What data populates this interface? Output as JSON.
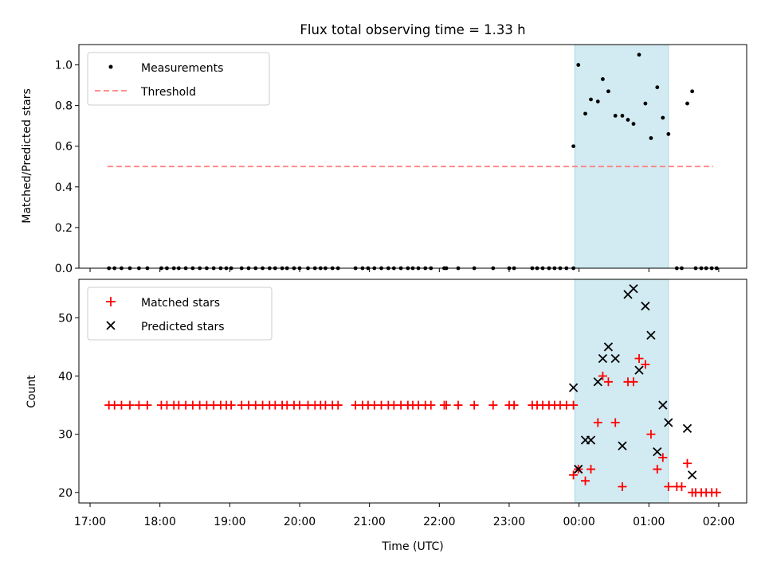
{
  "title": "Flux total observing time = 1.33 h",
  "colors": {
    "shade": "#add8e6",
    "measurement": "#000000",
    "threshold": "#ff7f7f",
    "matched": "#ff0000",
    "predicted": "#000000"
  },
  "chart_data": [
    {
      "type": "scatter",
      "panel": "top",
      "title": "Flux total observing time = 1.33 h",
      "xlabel": "",
      "ylabel": "Matched/Predicted stars",
      "xlim": [
        16.84,
        26.4
      ],
      "ylim": [
        0,
        1.1
      ],
      "yticks": [
        "0.0",
        "0.2",
        "0.4",
        "0.6",
        "0.8",
        "1.0"
      ],
      "ytick_values": [
        0,
        0.2,
        0.4,
        0.6,
        0.8,
        1.0
      ],
      "observing_window": [
        23.94,
        25.28
      ],
      "legend": [
        "Measurements",
        "Threshold"
      ],
      "threshold": {
        "y": 0.5,
        "x_from": 17.25,
        "x_to": 25.92
      },
      "measurements": {
        "zero_times": [
          17.27,
          17.35,
          17.45,
          17.57,
          17.7,
          17.82,
          18.02,
          18.1,
          18.2,
          18.27,
          18.37,
          18.47,
          18.57,
          18.67,
          18.77,
          18.87,
          18.95,
          19.02,
          19.17,
          19.27,
          19.37,
          19.47,
          19.57,
          19.65,
          19.75,
          19.82,
          19.92,
          20.0,
          20.12,
          20.22,
          20.3,
          20.37,
          20.47,
          20.55,
          20.8,
          20.9,
          20.98,
          21.07,
          21.17,
          21.27,
          21.35,
          21.45,
          21.55,
          21.62,
          21.7,
          21.8,
          21.88,
          22.07,
          22.1,
          22.27,
          22.5,
          22.77,
          23.0,
          23.07,
          23.33,
          23.4,
          23.48,
          23.57,
          23.65,
          23.73,
          23.82,
          23.92,
          25.4,
          25.47,
          25.67,
          25.75,
          25.82,
          25.9,
          25.97
        ],
        "active_times": [
          23.92,
          23.99,
          24.09,
          24.17,
          24.27,
          24.34,
          24.42,
          24.52,
          24.62,
          24.7,
          24.78,
          24.86,
          24.95,
          25.03,
          25.12,
          25.2,
          25.28,
          25.55,
          25.62
        ],
        "active_values": [
          0.6,
          1.0,
          0.76,
          0.83,
          0.82,
          0.93,
          0.87,
          0.75,
          0.75,
          0.73,
          0.71,
          1.05,
          0.81,
          0.64,
          0.89,
          0.74,
          0.66,
          0.81,
          0.87
        ]
      }
    },
    {
      "type": "scatter",
      "panel": "bottom",
      "xlabel": "Time (UTC)",
      "ylabel": "Count",
      "xlim": [
        16.84,
        26.4
      ],
      "ylim": [
        18.2,
        56.6
      ],
      "yticks": [
        "20",
        "30",
        "40",
        "50"
      ],
      "ytick_values": [
        20,
        30,
        40,
        50
      ],
      "xticks": [
        "17:00",
        "18:00",
        "19:00",
        "20:00",
        "21:00",
        "22:00",
        "23:00",
        "00:00",
        "01:00",
        "02:00"
      ],
      "xtick_values": [
        17,
        18,
        19,
        20,
        21,
        22,
        23,
        24,
        25,
        26
      ],
      "observing_window": [
        23.94,
        25.28
      ],
      "legend": [
        "Matched stars",
        "Predicted stars"
      ],
      "matched_stars": {
        "times": [
          17.27,
          17.35,
          17.45,
          17.57,
          17.7,
          17.82,
          18.02,
          18.1,
          18.2,
          18.27,
          18.37,
          18.47,
          18.57,
          18.67,
          18.77,
          18.87,
          18.95,
          19.02,
          19.17,
          19.27,
          19.37,
          19.47,
          19.57,
          19.65,
          19.75,
          19.82,
          19.92,
          20.0,
          20.12,
          20.22,
          20.3,
          20.37,
          20.47,
          20.55,
          20.8,
          20.9,
          20.98,
          21.07,
          21.17,
          21.27,
          21.35,
          21.45,
          21.55,
          21.62,
          21.7,
          21.8,
          21.88,
          22.07,
          22.1,
          22.27,
          22.5,
          22.77,
          23.0,
          23.07,
          23.33,
          23.4,
          23.48,
          23.57,
          23.65,
          23.73,
          23.82,
          23.92,
          23.92,
          23.99,
          24.09,
          24.17,
          24.27,
          24.34,
          24.42,
          24.52,
          24.62,
          24.7,
          24.78,
          24.86,
          24.95,
          25.03,
          25.12,
          25.2,
          25.28,
          25.4,
          25.47,
          25.55,
          25.62,
          25.67,
          25.75,
          25.82,
          25.9,
          25.97
        ],
        "values": [
          35,
          35,
          35,
          35,
          35,
          35,
          35,
          35,
          35,
          35,
          35,
          35,
          35,
          35,
          35,
          35,
          35,
          35,
          35,
          35,
          35,
          35,
          35,
          35,
          35,
          35,
          35,
          35,
          35,
          35,
          35,
          35,
          35,
          35,
          35,
          35,
          35,
          35,
          35,
          35,
          35,
          35,
          35,
          35,
          35,
          35,
          35,
          35,
          35,
          35,
          35,
          35,
          35,
          35,
          35,
          35,
          35,
          35,
          35,
          35,
          35,
          35,
          23,
          24,
          22,
          24,
          32,
          40,
          39,
          32,
          21,
          39,
          39,
          43,
          42,
          30,
          24,
          26,
          21,
          21,
          21,
          25,
          20,
          20,
          20,
          20,
          20,
          20
        ]
      },
      "predicted_stars": {
        "times": [
          23.92,
          23.99,
          24.09,
          24.17,
          24.27,
          24.34,
          24.42,
          24.52,
          24.62,
          24.7,
          24.78,
          24.86,
          24.95,
          25.03,
          25.12,
          25.2,
          25.28,
          25.55,
          25.62
        ],
        "values": [
          38,
          24,
          29,
          29,
          39,
          43,
          45,
          43,
          28,
          54,
          55,
          41,
          52,
          47,
          27,
          35,
          32,
          31,
          23
        ]
      }
    }
  ]
}
